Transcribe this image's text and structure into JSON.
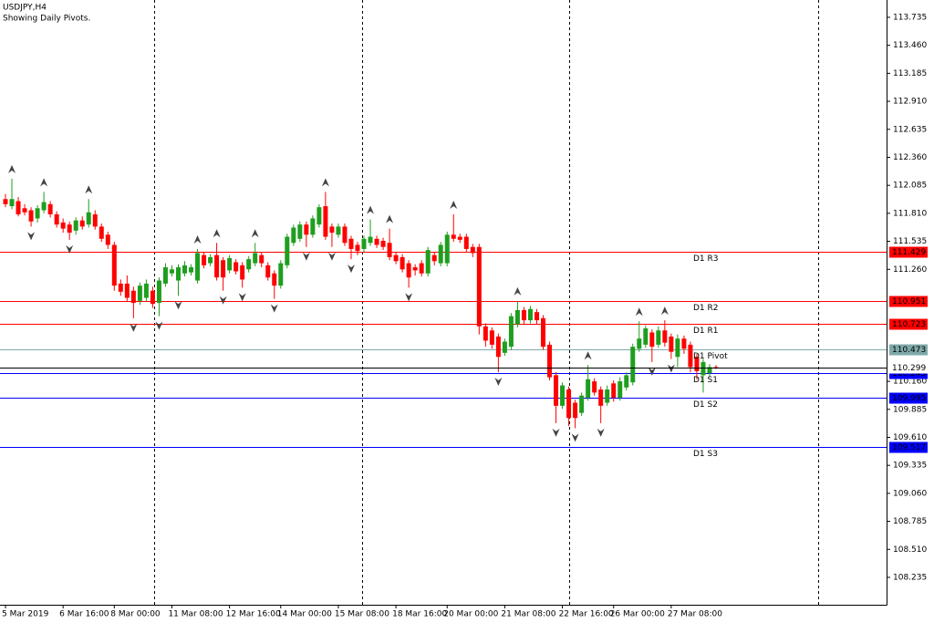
{
  "chart_data": {
    "type": "candlestick",
    "title": "USDJPY,H4",
    "subtitle": "Showing Daily Pivots.",
    "up_color": "#1e9e1e",
    "down_color": "#ff0000",
    "ylim": [
      107.966,
      113.905
    ],
    "yticks": [
      113.735,
      {
        "value": 113.46,
        "label": "113.460"
      },
      113.185,
      {
        "value": 112.91,
        "label": "112.910"
      },
      112.635,
      {
        "value": 112.36,
        "label": "112.360"
      },
      112.085,
      {
        "value": 111.81,
        "label": "111.810"
      },
      111.535,
      {
        "value": 111.26,
        "label": "111.260"
      },
      {
        "value": 110.16,
        "label": "110.160"
      },
      109.885,
      {
        "value": 109.61,
        "label": "109.610"
      },
      109.335,
      {
        "value": 109.06,
        "label": "109.060"
      },
      108.785,
      {
        "value": 108.51,
        "label": "108.510"
      },
      108.235
    ],
    "categories": [
      "5 Mar 2019",
      null,
      null,
      null,
      null,
      null,
      null,
      null,
      null,
      "6 Mar 16:00",
      null,
      null,
      null,
      null,
      null,
      null,
      null,
      "8 Mar 00:00",
      null,
      null,
      null,
      null,
      null,
      null,
      null,
      null,
      "11 Mar 08:00",
      null,
      null,
      null,
      null,
      null,
      null,
      null,
      null,
      "12 Mar 16:00",
      null,
      null,
      null,
      null,
      null,
      null,
      null,
      "14 Mar 00:00",
      null,
      null,
      null,
      null,
      null,
      null,
      null,
      null,
      "15 Mar 08:00",
      null,
      null,
      null,
      null,
      null,
      null,
      null,
      null,
      "18 Mar 16:00",
      null,
      null,
      null,
      null,
      null,
      null,
      null,
      "20 Mar 00:00",
      null,
      null,
      null,
      null,
      null,
      null,
      null,
      null,
      "21 Mar 08:00",
      null,
      null,
      null,
      null,
      null,
      null,
      null,
      null,
      "22 Mar 16:00",
      null,
      null,
      null,
      null,
      null,
      null,
      null,
      "26 Mar 00:00",
      null,
      null,
      null,
      null,
      null,
      null,
      null,
      null,
      "27 Mar 08:00",
      null,
      null,
      null,
      null,
      null,
      null,
      null
    ],
    "ohlc": [
      [
        111.95,
        112.0,
        111.87,
        111.9
      ],
      [
        111.88,
        112.15,
        111.85,
        111.95
      ],
      [
        111.93,
        111.97,
        111.78,
        111.8
      ],
      [
        111.86,
        111.9,
        111.79,
        111.82
      ],
      [
        111.84,
        111.87,
        111.68,
        111.73
      ],
      [
        111.76,
        111.89,
        111.72,
        111.86
      ],
      [
        111.84,
        112.02,
        111.81,
        111.92
      ],
      [
        111.9,
        111.93,
        111.77,
        111.8
      ],
      [
        111.8,
        111.83,
        111.67,
        111.7
      ],
      [
        111.72,
        111.76,
        111.62,
        111.66
      ],
      [
        111.7,
        111.73,
        111.55,
        111.62
      ],
      [
        111.64,
        111.77,
        111.6,
        111.74
      ],
      [
        111.74,
        111.78,
        111.65,
        111.68
      ],
      [
        111.7,
        111.95,
        111.67,
        111.82
      ],
      [
        111.8,
        111.84,
        111.65,
        111.68
      ],
      [
        111.68,
        111.71,
        111.53,
        111.56
      ],
      [
        111.6,
        111.63,
        111.46,
        111.5
      ],
      [
        111.5,
        111.53,
        111.05,
        111.1
      ],
      [
        111.12,
        111.16,
        111.0,
        111.04
      ],
      [
        111.12,
        111.2,
        110.95,
        110.98
      ],
      [
        111.05,
        111.09,
        110.78,
        110.93
      ],
      [
        110.95,
        111.13,
        110.91,
        111.1
      ],
      [
        110.98,
        111.16,
        110.95,
        111.12
      ],
      [
        111.05,
        111.09,
        110.88,
        110.92
      ],
      [
        110.93,
        111.18,
        110.8,
        111.15
      ],
      [
        111.12,
        111.32,
        111.09,
        111.28
      ],
      [
        111.22,
        111.3,
        111.19,
        111.26
      ],
      [
        111.15,
        111.31,
        111.0,
        111.28
      ],
      [
        111.22,
        111.34,
        111.19,
        111.3
      ],
      [
        111.23,
        111.31,
        111.2,
        111.28
      ],
      [
        111.15,
        111.46,
        111.12,
        111.42
      ],
      [
        111.4,
        111.43,
        111.27,
        111.3
      ],
      [
        111.32,
        111.41,
        111.29,
        111.38
      ],
      [
        111.4,
        111.52,
        111.15,
        111.18
      ],
      [
        111.35,
        111.38,
        111.05,
        111.18
      ],
      [
        111.25,
        111.4,
        111.22,
        111.37
      ],
      [
        111.33,
        111.36,
        111.21,
        111.24
      ],
      [
        111.3,
        111.33,
        111.08,
        111.16
      ],
      [
        111.26,
        111.39,
        111.23,
        111.36
      ],
      [
        111.32,
        111.52,
        111.29,
        111.42
      ],
      [
        111.4,
        111.43,
        111.28,
        111.32
      ],
      [
        111.3,
        111.33,
        111.15,
        111.18
      ],
      [
        111.22,
        111.25,
        110.97,
        111.1
      ],
      [
        111.1,
        111.35,
        111.07,
        111.32
      ],
      [
        111.3,
        111.61,
        111.27,
        111.58
      ],
      [
        111.52,
        111.7,
        111.49,
        111.67
      ],
      [
        111.56,
        111.73,
        111.53,
        111.7
      ],
      [
        111.7,
        111.73,
        111.48,
        111.6
      ],
      [
        111.6,
        111.79,
        111.57,
        111.76
      ],
      [
        111.7,
        111.9,
        111.67,
        111.87
      ],
      [
        111.88,
        112.02,
        111.55,
        111.58
      ],
      [
        111.68,
        111.71,
        111.48,
        111.62
      ],
      [
        111.6,
        111.71,
        111.57,
        111.68
      ],
      [
        111.68,
        111.71,
        111.49,
        111.52
      ],
      [
        111.56,
        111.59,
        111.36,
        111.46
      ],
      [
        111.5,
        111.53,
        111.4,
        111.44
      ],
      [
        111.46,
        111.59,
        111.43,
        111.56
      ],
      [
        111.52,
        111.75,
        111.49,
        111.58
      ],
      [
        111.56,
        111.59,
        111.47,
        111.5
      ],
      [
        111.54,
        111.57,
        111.45,
        111.48
      ],
      [
        111.52,
        111.66,
        111.35,
        111.38
      ],
      [
        111.4,
        111.43,
        111.31,
        111.34
      ],
      [
        111.38,
        111.41,
        111.23,
        111.26
      ],
      [
        111.32,
        111.35,
        111.08,
        111.18
      ],
      [
        111.28,
        111.31,
        111.2,
        111.25
      ],
      [
        111.32,
        111.35,
        111.19,
        111.22
      ],
      [
        111.22,
        111.48,
        111.19,
        111.45
      ],
      [
        111.4,
        111.43,
        111.3,
        111.34
      ],
      [
        111.32,
        111.53,
        111.29,
        111.5
      ],
      [
        111.32,
        111.63,
        111.29,
        111.6
      ],
      [
        111.6,
        111.8,
        111.53,
        111.56
      ],
      [
        111.58,
        111.61,
        111.52,
        111.55
      ],
      [
        111.58,
        111.61,
        111.43,
        111.46
      ],
      [
        111.48,
        111.51,
        111.38,
        111.42
      ],
      [
        111.48,
        111.51,
        110.62,
        110.7
      ],
      [
        110.7,
        110.73,
        110.5,
        110.56
      ],
      [
        110.66,
        110.69,
        110.48,
        110.52
      ],
      [
        110.6,
        110.63,
        110.25,
        110.4
      ],
      [
        110.44,
        110.58,
        110.41,
        110.55
      ],
      [
        110.5,
        110.83,
        110.47,
        110.8
      ],
      [
        110.72,
        110.95,
        110.69,
        110.86
      ],
      [
        110.86,
        110.89,
        110.72,
        110.76
      ],
      [
        110.76,
        110.9,
        110.73,
        110.87
      ],
      [
        110.84,
        110.87,
        110.72,
        110.76
      ],
      [
        110.78,
        110.81,
        110.47,
        110.5
      ],
      [
        110.52,
        110.55,
        110.17,
        110.2
      ],
      [
        110.22,
        110.25,
        109.75,
        109.92
      ],
      [
        109.92,
        110.15,
        109.89,
        110.12
      ],
      [
        110.08,
        110.11,
        109.72,
        109.8
      ],
      [
        109.95,
        109.98,
        109.7,
        109.8
      ],
      [
        109.85,
        110.05,
        109.82,
        110.02
      ],
      [
        110.0,
        110.32,
        109.97,
        110.18
      ],
      [
        110.16,
        110.19,
        110.02,
        110.05
      ],
      [
        110.08,
        110.11,
        109.75,
        109.92
      ],
      [
        109.95,
        110.12,
        109.92,
        110.08
      ],
      [
        110.14,
        110.17,
        109.96,
        110.0
      ],
      [
        110.0,
        110.2,
        109.97,
        110.16
      ],
      [
        110.1,
        110.25,
        110.07,
        110.22
      ],
      [
        110.15,
        110.53,
        110.12,
        110.5
      ],
      [
        110.48,
        110.75,
        110.45,
        110.58
      ],
      [
        110.52,
        110.71,
        110.49,
        110.68
      ],
      [
        110.64,
        110.67,
        110.35,
        110.5
      ],
      [
        110.52,
        110.7,
        110.49,
        110.66
      ],
      [
        110.66,
        110.76,
        110.5,
        110.54
      ],
      [
        110.6,
        110.63,
        110.38,
        110.45
      ],
      [
        110.4,
        110.62,
        110.3,
        110.58
      ],
      [
        110.58,
        110.61,
        110.43,
        110.48
      ],
      [
        110.52,
        110.55,
        110.25,
        110.3
      ],
      [
        110.4,
        110.43,
        110.18,
        110.26
      ],
      [
        110.22,
        110.38,
        110.05,
        110.35
      ],
      [
        110.24,
        110.33,
        110.2,
        110.3
      ],
      [
        110.3,
        110.32,
        110.28,
        110.299
      ]
    ],
    "fractals_up": [
      1,
      6,
      13,
      30,
      33,
      39,
      50,
      57,
      60,
      70,
      80,
      91,
      99,
      103
    ],
    "fractals_down": [
      4,
      10,
      20,
      24,
      27,
      34,
      37,
      42,
      47,
      51,
      54,
      63,
      77,
      86,
      89,
      93,
      101,
      104
    ],
    "levels": [
      {
        "name": "D1 R3",
        "value": 111.429,
        "color": "#ff0000"
      },
      {
        "name": "D1 R2",
        "value": 110.951,
        "color": "#ff0000"
      },
      {
        "name": "D1 R1",
        "value": 110.723,
        "color": "#ff0000"
      },
      {
        "name": "D1 Pivot",
        "value": 110.473,
        "color": "#7fa9a9"
      },
      {
        "name": "D1 S1",
        "value": 110.245,
        "color": "#0000ff"
      },
      {
        "name": "D1 S2",
        "value": 109.995,
        "color": "#0000ff"
      },
      {
        "name": "D1 S3",
        "value": 109.517,
        "color": "#0000ff"
      }
    ],
    "current_price": 110.299
  }
}
